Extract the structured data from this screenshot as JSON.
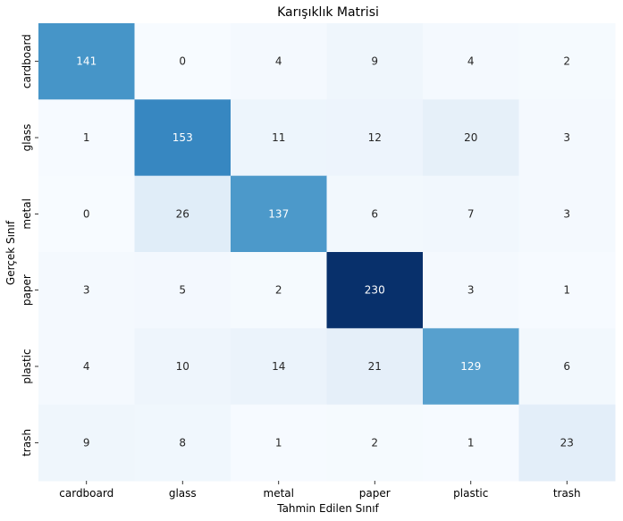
{
  "chart_data": {
    "type": "heatmap",
    "title": "Karışıklık Matrisi",
    "xlabel": "Tahmin Edilen Sınıf",
    "ylabel": "Gerçek Sınıf",
    "x_categories": [
      "cardboard",
      "glass",
      "metal",
      "paper",
      "plastic",
      "trash"
    ],
    "y_categories": [
      "cardboard",
      "glass",
      "metal",
      "paper",
      "plastic",
      "trash"
    ],
    "values": [
      [
        141,
        0,
        4,
        9,
        4,
        2
      ],
      [
        1,
        153,
        11,
        12,
        20,
        3
      ],
      [
        0,
        26,
        137,
        6,
        7,
        3
      ],
      [
        3,
        5,
        2,
        230,
        3,
        1
      ],
      [
        4,
        10,
        14,
        21,
        129,
        6
      ],
      [
        9,
        8,
        1,
        2,
        1,
        23
      ]
    ],
    "colormap": "Blues",
    "vmin": 0,
    "vmax": 230,
    "colorbar": false
  }
}
